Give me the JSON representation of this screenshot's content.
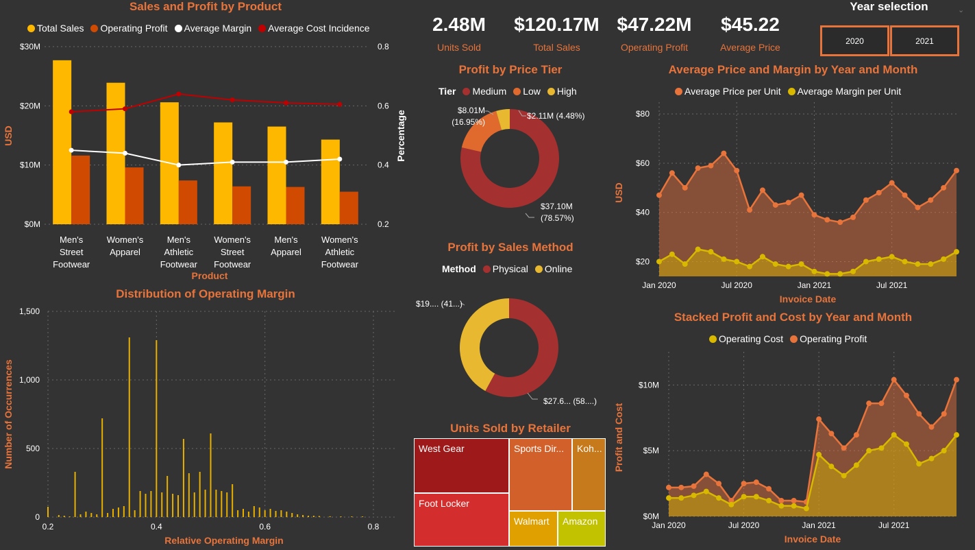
{
  "kpis": [
    {
      "value": "2.48M",
      "label": "Units Sold"
    },
    {
      "value": "$120.17M",
      "label": "Total Sales"
    },
    {
      "value": "$47.22M",
      "label": "Operating Profit"
    },
    {
      "value": "$45.22",
      "label": "Average Price"
    }
  ],
  "year_selection": {
    "title": "Year selection",
    "options": [
      "2020",
      "2021"
    ]
  },
  "colors": {
    "bg": "#333333",
    "orange": "#E8743B",
    "gold": "#FFB800",
    "darkorange": "#D04A02",
    "red": "#C00000",
    "medium": "#A4302F",
    "low": "#E06A2E",
    "high": "#E8B830"
  },
  "chart_data": [
    {
      "id": "sales_profit",
      "type": "bar",
      "title": "Sales and Profit by Product",
      "xlabel": "Product",
      "ylabel": "USD",
      "y2label": "Percentage",
      "categories": [
        [
          "Men's",
          "Street",
          "Footwear"
        ],
        [
          "Women's",
          "Apparel"
        ],
        [
          "Men's",
          "Athletic",
          "Footwear"
        ],
        [
          "Women's",
          "Street",
          "Footwear"
        ],
        [
          "Men's",
          "Apparel"
        ],
        [
          "Women's",
          "Athletic",
          "Footwear"
        ]
      ],
      "ylim": [
        0,
        30
      ],
      "y_ticks": [
        "$0M",
        "$10M",
        "$20M",
        "$30M"
      ],
      "y2lim": [
        0.2,
        0.8
      ],
      "y2_ticks": [
        "0.2",
        "0.4",
        "0.6",
        "0.8"
      ],
      "series": [
        {
          "name": "Total Sales",
          "kind": "bar",
          "color": "#FFB800",
          "values": [
            27.7,
            23.9,
            20.6,
            17.2,
            16.5,
            14.3
          ]
        },
        {
          "name": "Operating Profit",
          "kind": "bar",
          "color": "#D04A02",
          "values": [
            11.6,
            9.6,
            7.4,
            6.4,
            6.3,
            5.5
          ]
        },
        {
          "name": "Average Margin",
          "kind": "line",
          "axis": "y2",
          "color": "#ffffff",
          "values": [
            0.45,
            0.44,
            0.4,
            0.41,
            0.41,
            0.42
          ]
        },
        {
          "name": "Average Cost Incidence",
          "kind": "line",
          "axis": "y2",
          "color": "#C00000",
          "values": [
            0.58,
            0.59,
            0.64,
            0.62,
            0.61,
            0.605
          ]
        }
      ]
    },
    {
      "id": "margin_dist",
      "type": "bar",
      "title": "Distribution of Operating Margin",
      "xlabel": "Relative Operating Margin",
      "ylabel": "Number of Occurrences",
      "xlim": [
        0.2,
        0.8
      ],
      "x_ticks": [
        "0.2",
        "0.4",
        "0.6",
        "0.8"
      ],
      "ylim": [
        0,
        1500
      ],
      "y_ticks": [
        "0",
        "500",
        "1,000",
        "1,500"
      ],
      "x": [
        0.2,
        0.22,
        0.23,
        0.24,
        0.25,
        0.26,
        0.27,
        0.28,
        0.29,
        0.3,
        0.31,
        0.32,
        0.33,
        0.34,
        0.35,
        0.36,
        0.37,
        0.38,
        0.39,
        0.4,
        0.41,
        0.42,
        0.43,
        0.44,
        0.45,
        0.46,
        0.47,
        0.48,
        0.49,
        0.5,
        0.51,
        0.52,
        0.53,
        0.54,
        0.55,
        0.56,
        0.57,
        0.58,
        0.59,
        0.6,
        0.61,
        0.62,
        0.63,
        0.64,
        0.65,
        0.66,
        0.67,
        0.68,
        0.69,
        0.7,
        0.72,
        0.74,
        0.76,
        0.78
      ],
      "values": [
        75,
        15,
        10,
        5,
        330,
        20,
        40,
        30,
        20,
        720,
        30,
        60,
        70,
        80,
        1310,
        50,
        190,
        170,
        190,
        1290,
        180,
        300,
        170,
        160,
        570,
        320,
        180,
        330,
        200,
        610,
        200,
        190,
        180,
        240,
        50,
        60,
        40,
        80,
        70,
        50,
        60,
        45,
        50,
        40,
        30,
        20,
        15,
        10,
        10,
        8,
        6,
        5,
        5,
        5
      ]
    },
    {
      "id": "price_tier",
      "type": "pie",
      "title": "Profit by Price Tier",
      "legend_title": "Tier",
      "slices": [
        {
          "name": "Medium",
          "value": 37.1,
          "label1": "$37.10M",
          "label2": "(78.57%)",
          "color": "#A4302F"
        },
        {
          "name": "Low",
          "value": 8.01,
          "label1": "$8.01M",
          "label2": "(16.95%)",
          "color": "#E06A2E"
        },
        {
          "name": "High",
          "value": 2.11,
          "label1": "$2.11M (4.48%)",
          "label2": "",
          "color": "#E8B830"
        }
      ]
    },
    {
      "id": "sales_method",
      "type": "pie",
      "title": "Profit by Sales Method",
      "legend_title": "Method",
      "slices": [
        {
          "name": "Physical",
          "value": 58,
          "label1": "$27.6... (58....)",
          "color": "#A4302F"
        },
        {
          "name": "Online",
          "value": 42,
          "label1": "$19.... (41...)",
          "color": "#E8B830"
        }
      ]
    },
    {
      "id": "retailer_treemap",
      "type": "treemap",
      "title": "Units Sold by Retailer",
      "items": [
        {
          "name": "West Gear",
          "color": "#9E1A1A"
        },
        {
          "name": "Foot Locker",
          "color": "#D42D2D"
        },
        {
          "name": "Sports Dir...",
          "color": "#D2602A"
        },
        {
          "name": "Koh...",
          "color": "#C77A1C"
        },
        {
          "name": "Walmart",
          "color": "#E0A000"
        },
        {
          "name": "Amazon",
          "color": "#C2C200"
        }
      ]
    },
    {
      "id": "avg_price_margin",
      "type": "area",
      "title": "Average Price and Margin by Year and Month",
      "xlabel": "Invoice Date",
      "ylabel": "USD",
      "x_ticks": [
        "Jan 2020",
        "Jul 2020",
        "Jan 2021",
        "Jul 2021"
      ],
      "ylim": [
        14,
        82
      ],
      "y_ticks": [
        "$20",
        "$40",
        "$60",
        "$80"
      ],
      "x": [
        "2020-01",
        "2020-02",
        "2020-03",
        "2020-04",
        "2020-05",
        "2020-06",
        "2020-07",
        "2020-08",
        "2020-09",
        "2020-10",
        "2020-11",
        "2020-12",
        "2021-01",
        "2021-02",
        "2021-03",
        "2021-04",
        "2021-05",
        "2021-06",
        "2021-07",
        "2021-08",
        "2021-09",
        "2021-10",
        "2021-11",
        "2021-12"
      ],
      "series": [
        {
          "name": "Average Price per Unit",
          "color": "#E8743B",
          "values": [
            47,
            56,
            50,
            58,
            59,
            64,
            57,
            41,
            49,
            43,
            44,
            47,
            39,
            37,
            36,
            38,
            45,
            48,
            52,
            47,
            42,
            45,
            50,
            57
          ]
        },
        {
          "name": "Average Margin per Unit",
          "color": "#D9B800",
          "values": [
            20,
            23,
            19,
            25,
            24,
            21,
            20,
            18,
            22,
            19,
            18,
            19,
            16,
            15,
            15,
            16,
            20,
            21,
            22,
            20,
            19,
            19,
            21,
            24
          ]
        }
      ]
    },
    {
      "id": "stacked_profit_cost",
      "type": "area",
      "title": "Stacked Profit and Cost by Year and Month",
      "xlabel": "Invoice Date",
      "ylabel": "Profit and Cost",
      "x_ticks": [
        "Jan 2020",
        "Jul 2020",
        "Jan 2021",
        "Jul 2021"
      ],
      "ylim": [
        0,
        12
      ],
      "y_ticks": [
        "$0M",
        "$5M",
        "$10M"
      ],
      "x": [
        "2020-01",
        "2020-02",
        "2020-03",
        "2020-04",
        "2020-05",
        "2020-06",
        "2020-07",
        "2020-08",
        "2020-09",
        "2020-10",
        "2020-11",
        "2020-12",
        "2021-01",
        "2021-02",
        "2021-03",
        "2021-04",
        "2021-05",
        "2021-06",
        "2021-07",
        "2021-08",
        "2021-09",
        "2021-10",
        "2021-11",
        "2021-12"
      ],
      "series": [
        {
          "name": "Operating Cost",
          "color": "#D9B800",
          "values": [
            1.4,
            1.4,
            1.6,
            1.9,
            1.4,
            0.9,
            1.5,
            1.5,
            1.2,
            0.8,
            0.8,
            0.6,
            4.7,
            3.8,
            3.1,
            3.9,
            5.0,
            5.2,
            6.2,
            5.5,
            4.0,
            4.4,
            5.0,
            6.2
          ]
        },
        {
          "name": "Operating Profit",
          "color": "#E8743B",
          "values": [
            0.8,
            0.8,
            0.7,
            1.3,
            1.1,
            0.3,
            1.0,
            1.1,
            0.9,
            0.4,
            0.4,
            0.5,
            2.7,
            2.5,
            2.1,
            2.3,
            3.6,
            3.4,
            4.2,
            3.7,
            3.8,
            2.4,
            2.8,
            4.2
          ]
        }
      ]
    }
  ]
}
